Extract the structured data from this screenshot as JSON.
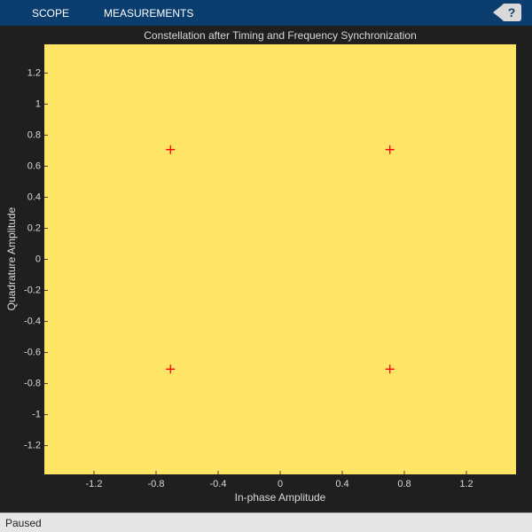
{
  "toolbar": {
    "tabs": [
      "SCOPE",
      "MEASUREMENTS"
    ],
    "help": "?"
  },
  "chart_data": {
    "type": "scatter",
    "title": "Constellation after Timing and Frequency Synchronization",
    "x_label": "In-phase Amplitude",
    "y_label": "Quadrature Amplitude",
    "xlim": [
      -1.52,
      1.52
    ],
    "ylim": [
      -1.385,
      1.385
    ],
    "xticks": [
      -1.2,
      -0.8,
      -0.4,
      0,
      0.4,
      0.8,
      1.2
    ],
    "yticks": [
      -1.2,
      -1,
      -0.8,
      -0.6,
      -0.4,
      -0.2,
      0,
      0.2,
      0.4,
      0.6,
      0.8,
      1,
      1.2
    ],
    "series": [
      {
        "color": "#ff0000",
        "x": [
          -0.707,
          -0.707,
          0.707,
          0.707
        ],
        "y": [
          0.707,
          -0.707,
          0.707,
          -0.707
        ]
      }
    ]
  },
  "status_bar": {
    "text": "Paused"
  }
}
